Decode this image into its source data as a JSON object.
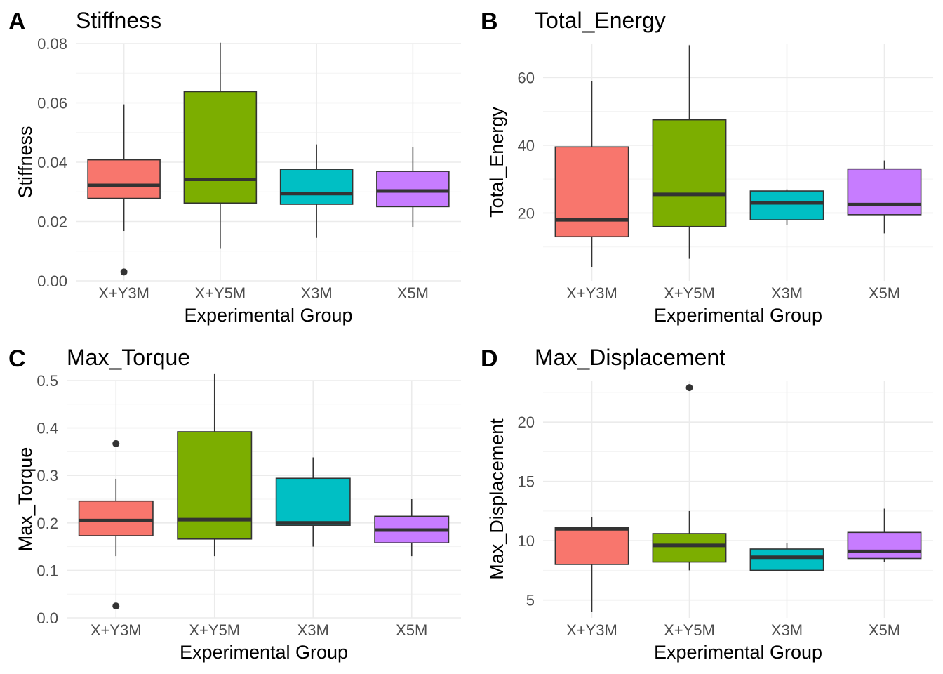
{
  "colors": {
    "X+Y3M": "#F8766D",
    "X+Y5M": "#7CAE00",
    "X3M": "#00BFC4",
    "X5M": "#C77CFF"
  },
  "chart_data": [
    {
      "type": "boxplot",
      "letter": "A",
      "title": "Stiffness",
      "xlabel": "Experimental Group",
      "ylabel": "Stiffness",
      "categories": [
        "X+Y3M",
        "X+Y5M",
        "X3M",
        "X5M"
      ],
      "ylim": [
        0,
        0.08
      ],
      "yticks": [
        0,
        0.02,
        0.04,
        0.06,
        0.08
      ],
      "ytick_labels": [
        "0.00",
        "0.02",
        "0.04",
        "0.06",
        "0.08"
      ],
      "grid": true,
      "boxes": [
        {
          "group": "X+Y3M",
          "whisker_low": 0.0168,
          "q1": 0.0278,
          "median": 0.0322,
          "q3": 0.0408,
          "whisker_high": 0.0595,
          "outliers": [
            0.003
          ]
        },
        {
          "group": "X+Y5M",
          "whisker_low": 0.011,
          "q1": 0.0262,
          "median": 0.0342,
          "q3": 0.0638,
          "whisker_high": 0.0803,
          "outliers": []
        },
        {
          "group": "X3M",
          "whisker_low": 0.0145,
          "q1": 0.0258,
          "median": 0.0294,
          "q3": 0.0376,
          "whisker_high": 0.046,
          "outliers": []
        },
        {
          "group": "X5M",
          "whisker_low": 0.018,
          "q1": 0.025,
          "median": 0.0303,
          "q3": 0.0369,
          "whisker_high": 0.045,
          "outliers": []
        }
      ]
    },
    {
      "type": "boxplot",
      "letter": "B",
      "title": "Total_Energy",
      "xlabel": "Experimental Group",
      "ylabel": "Total_Energy",
      "categories": [
        "X+Y3M",
        "X+Y5M",
        "X3M",
        "X5M"
      ],
      "ylim": [
        0,
        70
      ],
      "yticks": [
        20,
        40,
        60
      ],
      "ytick_labels": [
        "20",
        "40",
        "60"
      ],
      "grid": true,
      "boxes": [
        {
          "group": "X+Y3M",
          "whisker_low": 4.0,
          "q1": 13.0,
          "median": 18.0,
          "q3": 39.5,
          "whisker_high": 59.0,
          "outliers": []
        },
        {
          "group": "X+Y5M",
          "whisker_low": 6.5,
          "q1": 16.0,
          "median": 25.5,
          "q3": 47.5,
          "whisker_high": 69.5,
          "outliers": []
        },
        {
          "group": "X3M",
          "whisker_low": 16.5,
          "q1": 18.0,
          "median": 23.0,
          "q3": 26.5,
          "whisker_high": 27.0,
          "outliers": []
        },
        {
          "group": "X5M",
          "whisker_low": 14.0,
          "q1": 19.5,
          "median": 22.5,
          "q3": 33.0,
          "whisker_high": 35.5,
          "outliers": []
        }
      ]
    },
    {
      "type": "boxplot",
      "letter": "C",
      "title": "Max_Torque",
      "xlabel": "Experimental Group",
      "ylabel": "Max_Torque",
      "categories": [
        "X+Y3M",
        "X+Y5M",
        "X3M",
        "X5M"
      ],
      "ylim": [
        0,
        0.5
      ],
      "yticks": [
        0,
        0.1,
        0.2,
        0.3,
        0.4,
        0.5
      ],
      "ytick_labels": [
        "0.0",
        "0.1",
        "0.2",
        "0.3",
        "0.4",
        "0.5"
      ],
      "grid": true,
      "boxes": [
        {
          "group": "X+Y3M",
          "whisker_low": 0.13,
          "q1": 0.173,
          "median": 0.205,
          "q3": 0.246,
          "whisker_high": 0.293,
          "outliers": [
            0.367,
            0.025
          ]
        },
        {
          "group": "X+Y5M",
          "whisker_low": 0.13,
          "q1": 0.166,
          "median": 0.207,
          "q3": 0.392,
          "whisker_high": 0.515,
          "outliers": []
        },
        {
          "group": "X3M",
          "whisker_low": 0.15,
          "q1": 0.195,
          "median": 0.2,
          "q3": 0.294,
          "whisker_high": 0.338,
          "outliers": []
        },
        {
          "group": "X5M",
          "whisker_low": 0.13,
          "q1": 0.158,
          "median": 0.185,
          "q3": 0.214,
          "whisker_high": 0.25,
          "outliers": []
        }
      ]
    },
    {
      "type": "boxplot",
      "letter": "D",
      "title": "Max_Displacement",
      "xlabel": "Experimental Group",
      "ylabel": "Max_Displacement",
      "categories": [
        "X+Y3M",
        "X+Y5M",
        "X3M",
        "X5M"
      ],
      "ylim": [
        3.5,
        23.5
      ],
      "yticks": [
        5,
        10,
        15,
        20
      ],
      "ytick_labels": [
        "5",
        "10",
        "15",
        "20"
      ],
      "grid": true,
      "boxes": [
        {
          "group": "X+Y3M",
          "whisker_low": 4.0,
          "q1": 8.0,
          "median": 11.0,
          "q3": 11.1,
          "whisker_high": 12.0,
          "outliers": []
        },
        {
          "group": "X+Y5M",
          "whisker_low": 7.5,
          "q1": 8.2,
          "median": 9.6,
          "q3": 10.6,
          "whisker_high": 12.5,
          "outliers": [
            22.9
          ]
        },
        {
          "group": "X3M",
          "whisker_low": 7.5,
          "q1": 7.5,
          "median": 8.6,
          "q3": 9.3,
          "whisker_high": 9.8,
          "outliers": []
        },
        {
          "group": "X5M",
          "whisker_low": 8.2,
          "q1": 8.5,
          "median": 9.1,
          "q3": 10.7,
          "whisker_high": 12.7,
          "outliers": []
        }
      ]
    }
  ]
}
